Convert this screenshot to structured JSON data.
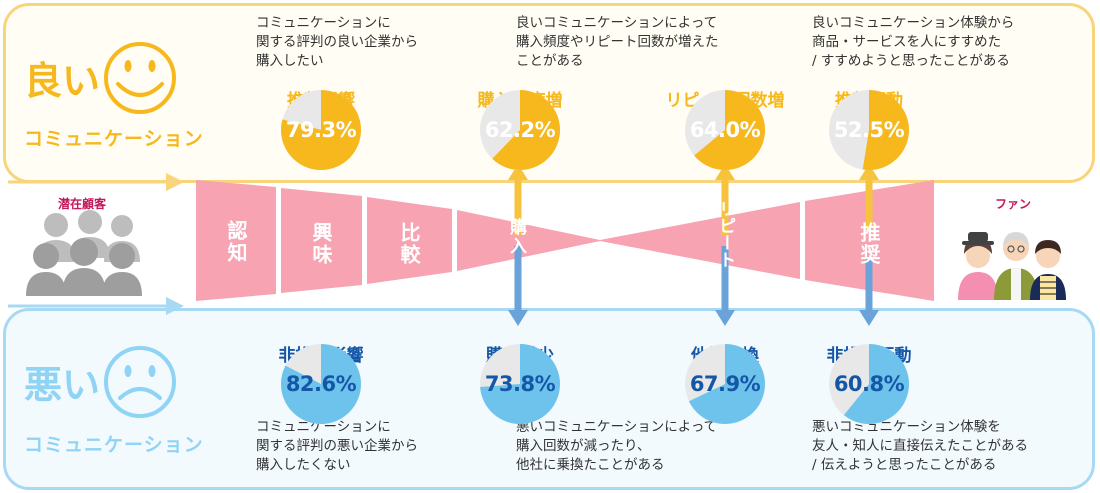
{
  "good": {
    "label": "良い",
    "sublabel": "コミュニケーション",
    "color": "#f6b81d",
    "border_color": "#f8d57a",
    "desc1": "コミュニケーションに\n関する評判の良い企業から\n購入したい",
    "desc2": "良いコミュニケーションによって\n購入頻度やリピート回数が増えた\nことがある",
    "desc3": "良いコミュニケーション体験から\n商品・サービスを人にすすめた\n/ すすめようと思ったことがある",
    "stats": [
      {
        "title": "推奨影響",
        "value": "79.3%",
        "percent": 79.3
      },
      {
        "title": "購入頻度増",
        "value": "62.2%",
        "percent": 62.2
      },
      {
        "title": "リピート回数増",
        "value": "64.0%",
        "percent": 64.0
      },
      {
        "title": "推奨行動",
        "value": "52.5%",
        "percent": 52.5
      }
    ]
  },
  "bad": {
    "label": "悪い",
    "sublabel": "コミュニケーション",
    "color": "#8fd3f5",
    "pie_color": "#6ec3ec",
    "title_color": "#1457a6",
    "desc1": "コミュニケーションに\n関する評判の悪い企業から\n購入したくない",
    "desc2": "悪いコミュニケーションによって\n購入回数が減ったり、\n他社に乗換たことがある",
    "desc3": "悪いコミュニケーション体験を\n友人・知人に直接伝えたことがある\n/ 伝えようと思ったことがある",
    "stats": [
      {
        "title": "非推奨影響",
        "value": "82.6%",
        "percent": 82.6
      },
      {
        "title": "購入減少",
        "value": "73.8%",
        "percent": 73.8
      },
      {
        "title": "他社乗換",
        "value": "67.9%",
        "percent": 67.9
      },
      {
        "title": "非推奨行動",
        "value": "60.8%",
        "percent": 60.8
      }
    ]
  },
  "funnel": {
    "color": "#f7a3b1",
    "stages": [
      "認知",
      "興味",
      "比較",
      "購入",
      "リピート",
      "推奨"
    ]
  },
  "left_label": "潜在顧客",
  "right_label": "ファン",
  "icons": {
    "good_face": "smiley-face-icon",
    "bad_face": "sad-face-icon",
    "potential_customers": "people-group-gray-icon",
    "fans": "people-group-color-icon"
  }
}
